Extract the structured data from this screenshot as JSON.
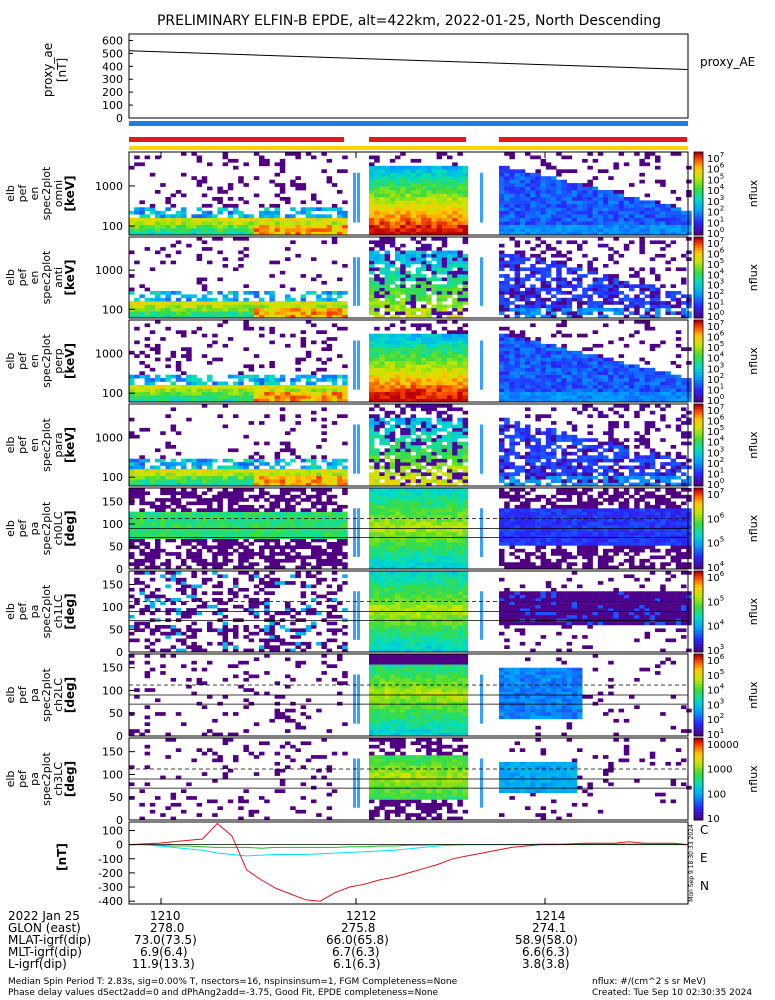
{
  "title": "PRELIMINARY ELFIN-B EPDE, alt=422km, 2022-01-25, North Descending",
  "colors": {
    "red_bar": "#e8141e",
    "blue_bar": "#1a7fe0",
    "yellow_bar": "#ffd200",
    "comp_c": "#00e5ff",
    "comp_e": "#e0141e",
    "comp_n": "#18c018"
  },
  "proxy": {
    "ylabel_line1": "proxy_ae",
    "ylabel_line2": "[nT]",
    "legend": "proxy_AE",
    "ticks": [
      "600",
      "500",
      "400",
      "300",
      "200",
      "100",
      "0"
    ]
  },
  "spec_panels": [
    {
      "label_lines": [
        "elb",
        "pef",
        "en",
        "spec2plot",
        "omni",
        "[keV]"
      ],
      "ticks": [
        "1000",
        "100"
      ]
    },
    {
      "label_lines": [
        "elb",
        "pef",
        "en",
        "spec2plot",
        "anti",
        "[keV]"
      ],
      "ticks": [
        "1000",
        "100"
      ]
    },
    {
      "label_lines": [
        "elb",
        "pef",
        "en",
        "spec2plot",
        "perp",
        "[keV]"
      ],
      "ticks": [
        "1000",
        "100"
      ]
    },
    {
      "label_lines": [
        "elb",
        "pef",
        "en",
        "spec2plot",
        "para",
        "[keV]"
      ],
      "ticks": [
        "1000",
        "100"
      ]
    },
    {
      "label_lines": [
        "elb",
        "pef",
        "pa",
        "spec2plot",
        "ch0LC",
        "[deg]"
      ],
      "ticks": [
        "150",
        "100",
        "50",
        "0"
      ]
    },
    {
      "label_lines": [
        "elb",
        "pef",
        "pa",
        "spec2plot",
        "ch1LC",
        "[deg]"
      ],
      "ticks": [
        "150",
        "100",
        "50",
        "0"
      ]
    },
    {
      "label_lines": [
        "elb",
        "pef",
        "pa",
        "spec2plot",
        "ch2LC",
        "[deg]"
      ],
      "ticks": [
        "150",
        "100",
        "50",
        "0"
      ]
    },
    {
      "label_lines": [
        "elb",
        "pef",
        "pa",
        "spec2plot",
        "ch3LC",
        "[deg]"
      ],
      "ticks": [
        "150",
        "100",
        "50",
        "0"
      ]
    }
  ],
  "colorbars": [
    {
      "ticks": [
        "10",
        "10",
        "10",
        "10",
        "10",
        "10",
        "10",
        "10"
      ],
      "exps": [
        "7",
        "6",
        "5",
        "4",
        "3",
        "2",
        "1",
        "0"
      ],
      "label": "nflux"
    },
    {
      "ticks": [
        "10",
        "10",
        "10",
        "10",
        "10",
        "10",
        "10",
        "10"
      ],
      "exps": [
        "7",
        "6",
        "5",
        "4",
        "3",
        "2",
        "1",
        "0"
      ],
      "label": "nflux"
    },
    {
      "ticks": [
        "10",
        "10",
        "10",
        "10",
        "10",
        "10",
        "10",
        "10"
      ],
      "exps": [
        "7",
        "6",
        "5",
        "4",
        "3",
        "2",
        "1",
        "0"
      ],
      "label": "nflux"
    },
    {
      "ticks": [
        "10",
        "10",
        "10",
        "10",
        "10",
        "10",
        "10",
        "10"
      ],
      "exps": [
        "7",
        "6",
        "5",
        "4",
        "3",
        "2",
        "1",
        "0"
      ],
      "label": "nflux"
    },
    {
      "ticks": [
        "10",
        "10",
        "10",
        "10"
      ],
      "exps": [
        "7",
        "6",
        "5",
        "4"
      ],
      "label": "nflux"
    },
    {
      "ticks": [
        "10",
        "10",
        "10",
        "10"
      ],
      "exps": [
        "6",
        "5",
        "4",
        "3"
      ],
      "label": "nflux"
    },
    {
      "ticks": [
        "10",
        "10",
        "10",
        "10",
        "10",
        "10"
      ],
      "exps": [
        "6",
        "5",
        "4",
        "3",
        "2",
        "1"
      ],
      "label": "nflux"
    },
    {
      "ticks": [
        "10000",
        "1000",
        "100",
        "10"
      ],
      "exps": [
        "",
        "",
        "",
        ""
      ],
      "label": "nflux"
    }
  ],
  "mag": {
    "ylabel": "[nT]",
    "ticks": [
      "100",
      "0",
      "-100",
      "-200",
      "-300",
      "-400"
    ],
    "comp_c": "C",
    "comp_e": "E",
    "comp_n": "N",
    "stamp": "Mon Sep 9 18:30:33 2024"
  },
  "time_row": {
    "label": "2022 Jan 25",
    "values": [
      "1210",
      "1212",
      "1214"
    ]
  },
  "rows": [
    {
      "label": "GLON (east)",
      "values": [
        "278.0",
        "275.8",
        "274.1"
      ]
    },
    {
      "label": "MLAT-igrf(dip)",
      "values": [
        "73.0(73.5)",
        "66.0(65.8)",
        "58.9(58.0)"
      ]
    },
    {
      "label": "MLT-igrf(dip)",
      "values": [
        "6.9(6.4)",
        "6.7(6.3)",
        "6.6(6.3)"
      ]
    },
    {
      "label": "L-igrf(dip)",
      "values": [
        "11.9(13.3)",
        "6.1(6.3)",
        "3.8(3.8)"
      ]
    }
  ],
  "footer": {
    "line1": "Median Spin Period T: 2.83s, sig=0.00% T, nsectors=16, nspinsinsum=1, FGM Completeness=None",
    "line2": "Phase delay values dSect2add=0 and dPhAng2add=-3.75, Good Fit, EPDE completeness=None",
    "right1": "nflux: #/(cm^2 s sr MeV)",
    "right2": "Created: Tue Sep 10 02:30:35 2024"
  },
  "chart_data": [
    {
      "type": "line",
      "name": "proxy_AE",
      "x": [
        "1209.2",
        "1215.5"
      ],
      "y": [
        520,
        375
      ],
      "ylim": [
        0,
        650
      ]
    },
    {
      "type": "heatmap",
      "panel": "omni",
      "yscale": "log",
      "ylim": [
        60,
        7000
      ]
    },
    {
      "type": "heatmap",
      "panel": "anti",
      "yscale": "log",
      "ylim": [
        60,
        7000
      ]
    },
    {
      "type": "heatmap",
      "panel": "perp",
      "yscale": "log",
      "ylim": [
        60,
        7000
      ]
    },
    {
      "type": "heatmap",
      "panel": "para",
      "yscale": "log",
      "ylim": [
        60,
        7000
      ]
    },
    {
      "type": "heatmap",
      "panel": "ch0LC",
      "ylim": [
        0,
        180
      ]
    },
    {
      "type": "heatmap",
      "panel": "ch1LC",
      "ylim": [
        0,
        180
      ]
    },
    {
      "type": "heatmap",
      "panel": "ch2LC",
      "ylim": [
        0,
        180
      ]
    },
    {
      "type": "heatmap",
      "panel": "ch3LC",
      "ylim": [
        0,
        180
      ]
    },
    {
      "type": "line",
      "name": "E",
      "ylim": [
        -420,
        160
      ],
      "y": [
        0,
        5,
        10,
        20,
        30,
        40,
        150,
        60,
        -180,
        -250,
        -310,
        -350,
        -390,
        -400,
        -340,
        -300,
        -280,
        -250,
        -230,
        -200,
        -170,
        -140,
        -100,
        -80,
        -60,
        -40,
        -20,
        -10,
        0,
        0,
        5,
        10,
        10,
        10,
        20,
        10,
        10,
        10,
        0
      ]
    },
    {
      "type": "line",
      "name": "N",
      "ylim": [
        -420,
        160
      ],
      "y": [
        0,
        0,
        -10,
        -20,
        -30,
        -40,
        -60,
        -70,
        -80,
        -75,
        -70,
        -70,
        -70,
        -65,
        -60,
        -55,
        -50,
        -45,
        -40,
        -30,
        -20,
        -10,
        -5,
        0,
        0,
        0,
        0,
        0,
        5,
        5,
        5,
        5,
        10,
        5,
        5,
        5,
        5,
        5,
        0
      ]
    },
    {
      "type": "line",
      "name": "C",
      "ylim": [
        -420,
        160
      ],
      "y": [
        0,
        0,
        -5,
        -10,
        -10,
        -15,
        -20,
        -20,
        -20,
        -25,
        -20,
        -20,
        -20,
        -20,
        -20,
        -15,
        -15,
        -10,
        -10,
        -5,
        -5,
        0,
        0,
        0,
        0,
        0,
        0,
        0,
        0,
        0,
        0,
        0,
        0,
        0,
        0,
        0,
        0,
        0,
        0
      ]
    }
  ]
}
